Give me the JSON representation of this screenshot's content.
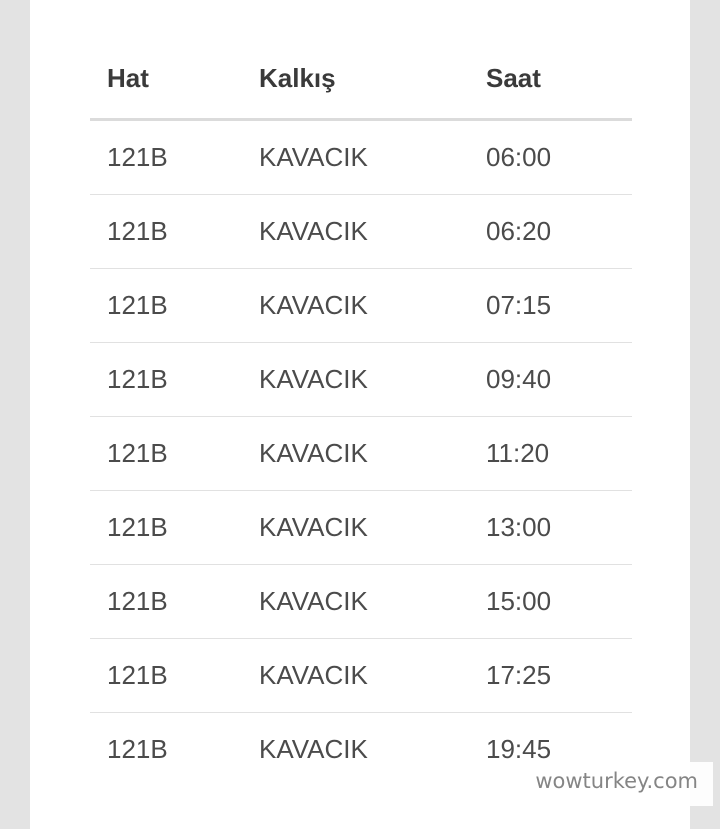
{
  "table": {
    "columns": [
      {
        "key": "hat",
        "label": "Hat"
      },
      {
        "key": "kalkis",
        "label": "Kalkış"
      },
      {
        "key": "saat",
        "label": "Saat"
      }
    ],
    "rows": [
      {
        "hat": "121B",
        "kalkis": "KAVACIK",
        "saat": "06:00"
      },
      {
        "hat": "121B",
        "kalkis": "KAVACIK",
        "saat": "06:20"
      },
      {
        "hat": "121B",
        "kalkis": "KAVACIK",
        "saat": "07:15"
      },
      {
        "hat": "121B",
        "kalkis": "KAVACIK",
        "saat": "09:40"
      },
      {
        "hat": "121B",
        "kalkis": "KAVACIK",
        "saat": "11:20"
      },
      {
        "hat": "121B",
        "kalkis": "KAVACIK",
        "saat": "13:00"
      },
      {
        "hat": "121B",
        "kalkis": "KAVACIK",
        "saat": "15:00"
      },
      {
        "hat": "121B",
        "kalkis": "KAVACIK",
        "saat": "17:25"
      },
      {
        "hat": "121B",
        "kalkis": "KAVACIK",
        "saat": "19:45"
      }
    ]
  },
  "watermark": {
    "text": "wowturkey.com"
  },
  "colors": {
    "page_margin": "#e3e3e3",
    "content_background": "#ffffff",
    "header_text": "#3a3a3a",
    "row_text": "#4b4b4b",
    "header_divider": "#dbdbdb",
    "row_divider": "#e1e1e1",
    "watermark_text": "#858585"
  }
}
